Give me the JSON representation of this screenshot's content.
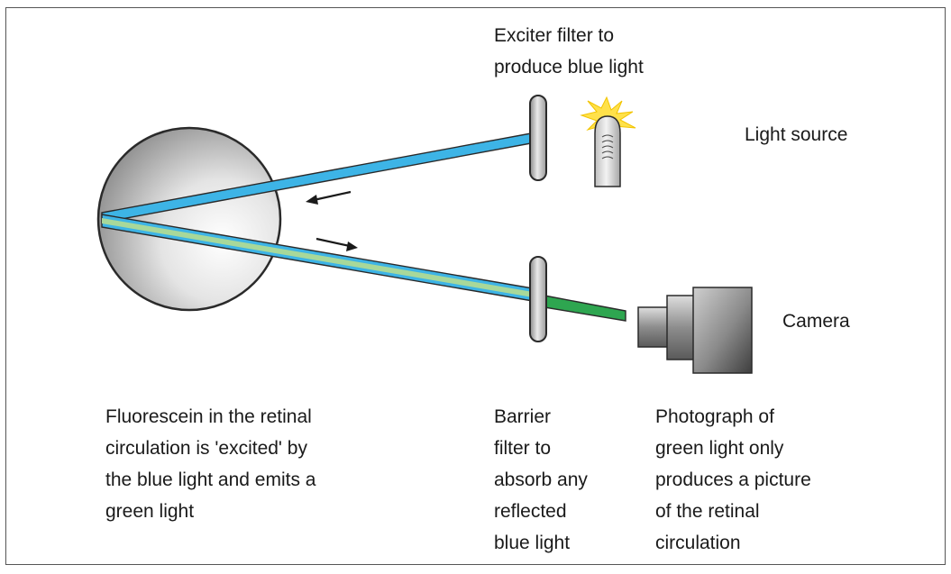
{
  "labels": {
    "exciter_filter": "Exciter filter to\nproduce blue light",
    "light_source": "Light source",
    "camera": "Camera",
    "fluorescein": "Fluorescein in the retinal\ncirculation is 'excited' by\nthe blue light and emits a\ngreen light",
    "barrier_filter": "Barrier\nfilter to\nabsorb any\nreflected\nblue light",
    "photograph": "Photograph of\ngreen light only\nproduces a picture\nof the retinal\ncirculation"
  },
  "colors": {
    "blue_light": "#3db4e6",
    "green_light": "#2ea650",
    "pale_green_light": "#a8d89a",
    "filter_gray": "#b5b5b5",
    "outline": "#2a2a2a",
    "text": "#1a1a1a",
    "glow": "#ffe14a"
  },
  "icons": {
    "eye": "eye-icon",
    "bulb": "light-bulb-icon",
    "camera": "camera-icon",
    "arrow": "arrow-icon"
  }
}
